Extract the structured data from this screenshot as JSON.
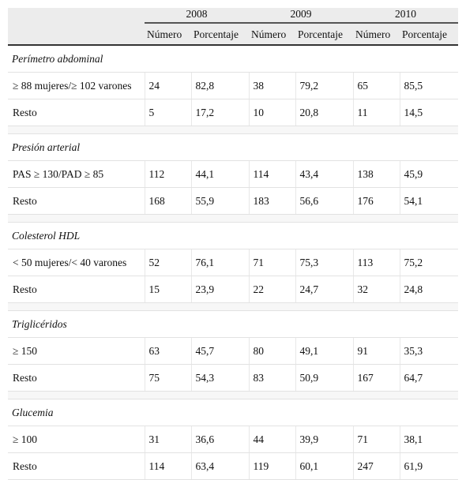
{
  "table": {
    "years": [
      "2008",
      "2009",
      "2010"
    ],
    "subheaders": [
      "Número",
      "Porcentaje",
      "Número",
      "Porcentaje",
      "Número",
      "Porcentaje"
    ],
    "sections": [
      {
        "title": "Perímetro abdominal",
        "rows": [
          [
            "≥ 88 mujeres/≥ 102 varones",
            "24",
            "82,8",
            "38",
            "79,2",
            "65",
            "85,5"
          ],
          [
            "Resto",
            "5",
            "17,2",
            "10",
            "20,8",
            "11",
            "14,5"
          ]
        ]
      },
      {
        "title": "Presión arterial",
        "rows": [
          [
            "PAS ≥ 130/PAD ≥ 85",
            "112",
            "44,1",
            "114",
            "43,4",
            "138",
            "45,9"
          ],
          [
            "Resto",
            "168",
            "55,9",
            "183",
            "56,6",
            "176",
            "54,1"
          ]
        ]
      },
      {
        "title": "Colesterol HDL",
        "rows": [
          [
            "< 50 mujeres/< 40 varones",
            "52",
            "76,1",
            "71",
            "75,3",
            "113",
            "75,2"
          ],
          [
            "Resto",
            "15",
            "23,9",
            "22",
            "24,7",
            "32",
            "24,8"
          ]
        ]
      },
      {
        "title": "Triglicéridos",
        "rows": [
          [
            "≥ 150",
            "63",
            "45,7",
            "80",
            "49,1",
            "91",
            "35,3"
          ],
          [
            "Resto",
            "75",
            "54,3",
            "83",
            "50,9",
            "167",
            "64,7"
          ]
        ]
      },
      {
        "title": "Glucemia",
        "rows": [
          [
            "≥ 100",
            "31",
            "36,6",
            "44",
            "39,9",
            "71",
            "38,1"
          ],
          [
            "Resto",
            "114",
            "63,4",
            "119",
            "60,1",
            "247",
            "61,9"
          ]
        ]
      }
    ]
  }
}
